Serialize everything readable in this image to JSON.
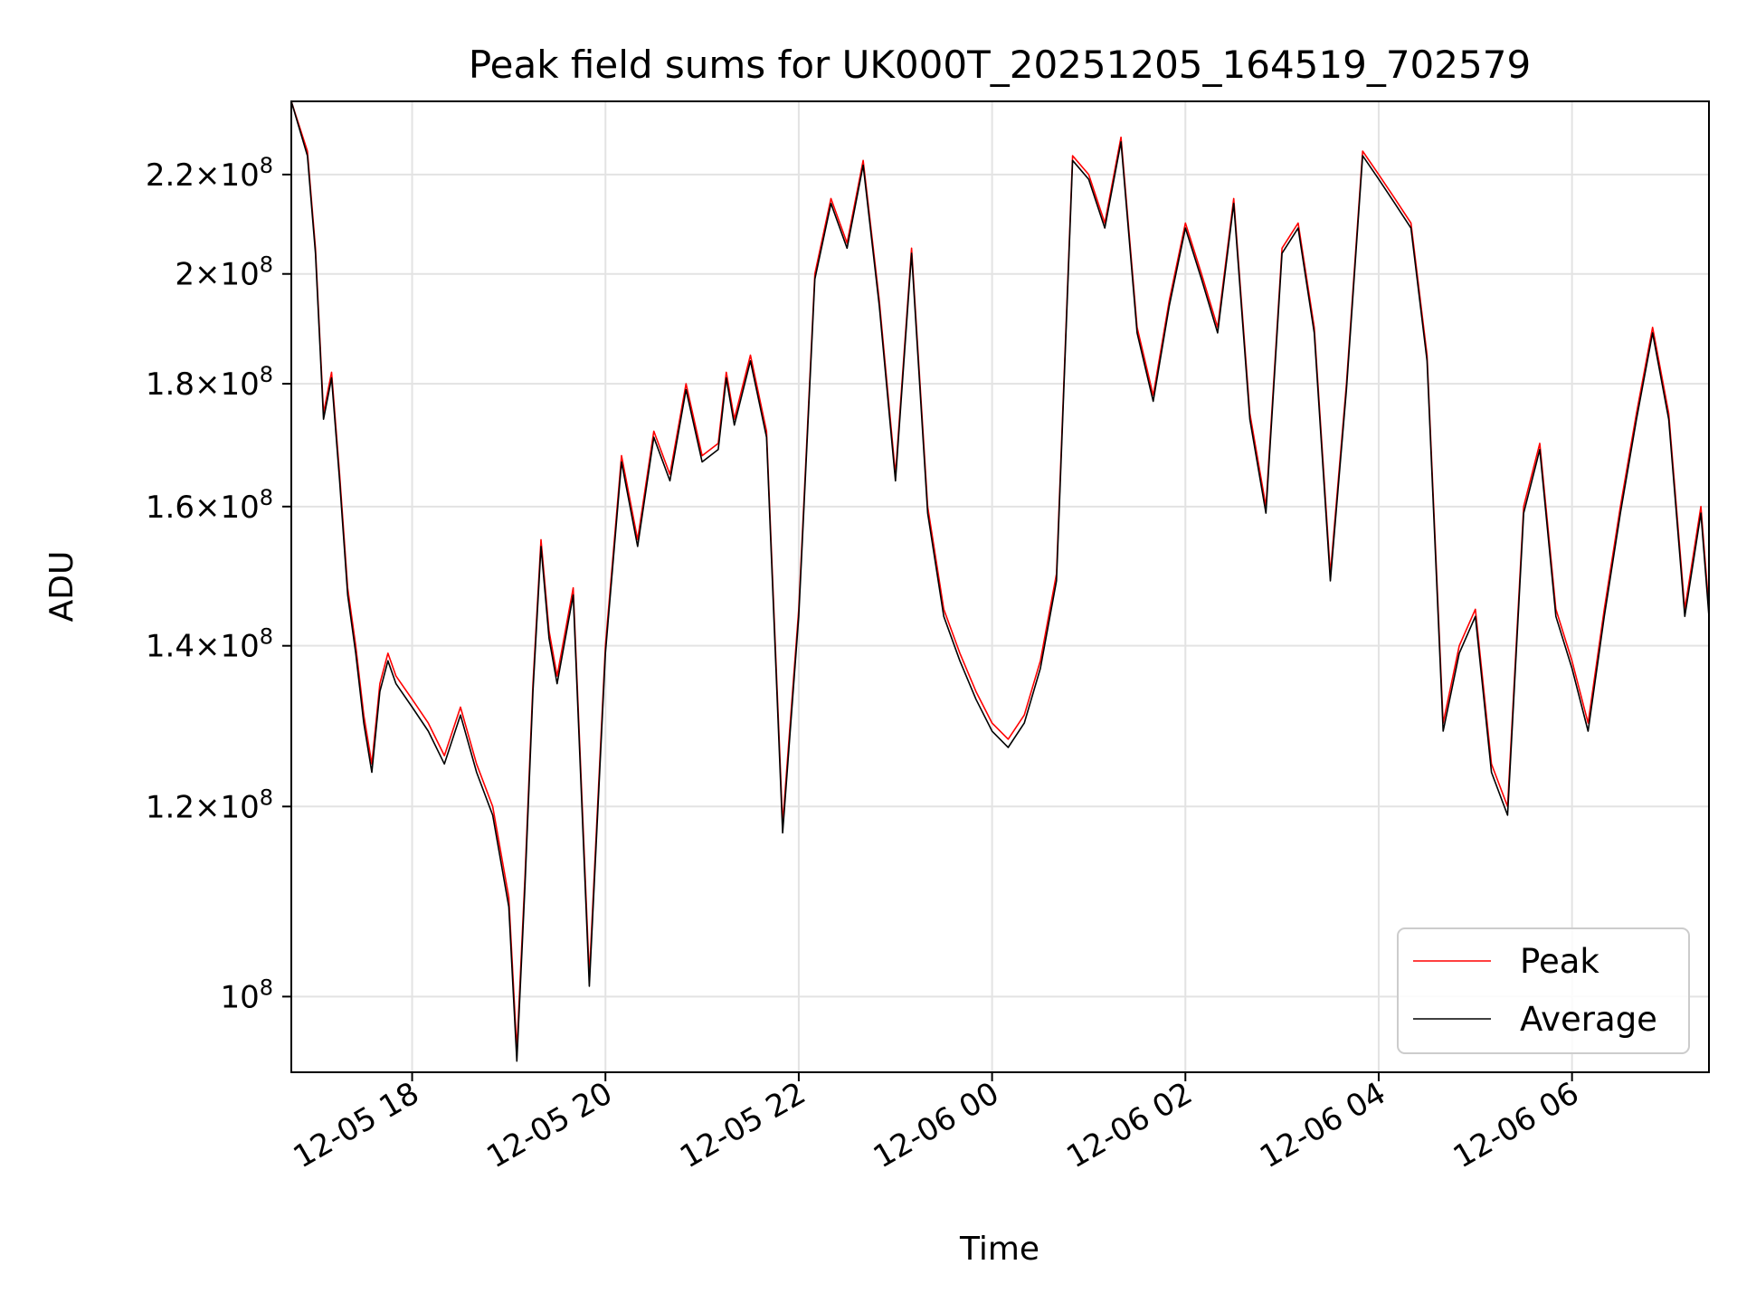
{
  "chart_data": {
    "type": "line",
    "title": "Peak field sums for UK000T_20251205_164519_702579",
    "xlabel": "Time",
    "ylabel": "ADU",
    "y_scale": "log",
    "ylim": [
      93000000,
      236000000
    ],
    "xlim": [
      "2025-12-05 16:45",
      "2025-12-06 07:25"
    ],
    "grid": true,
    "legend_position": "lower-right",
    "y_ticks": [
      {
        "value": 100000000,
        "label": "10^8"
      },
      {
        "value": 120000000,
        "label": "1.2×10^8"
      },
      {
        "value": 140000000,
        "label": "1.4×10^8"
      },
      {
        "value": 160000000,
        "label": "1.6×10^8"
      },
      {
        "value": 180000000,
        "label": "1.8×10^8"
      },
      {
        "value": 200000000,
        "label": "2×10^8"
      },
      {
        "value": 220000000,
        "label": "2.2×10^8"
      }
    ],
    "x_ticks": [
      {
        "value": "2025-12-05 18:00",
        "label": "12-05 18"
      },
      {
        "value": "2025-12-05 20:00",
        "label": "12-05 20"
      },
      {
        "value": "2025-12-05 22:00",
        "label": "12-05 22"
      },
      {
        "value": "2025-12-06 00:00",
        "label": "12-06 00"
      },
      {
        "value": "2025-12-06 02:00",
        "label": "12-06 02"
      },
      {
        "value": "2025-12-06 04:00",
        "label": "12-06 04"
      },
      {
        "value": "2025-12-06 06:00",
        "label": "12-06 06"
      }
    ],
    "x": [
      "2025-12-05 16:45",
      "2025-12-05 16:55",
      "2025-12-05 17:00",
      "2025-12-05 17:05",
      "2025-12-05 17:10",
      "2025-12-05 17:15",
      "2025-12-05 17:20",
      "2025-12-05 17:25",
      "2025-12-05 17:30",
      "2025-12-05 17:35",
      "2025-12-05 17:40",
      "2025-12-05 17:45",
      "2025-12-05 17:50",
      "2025-12-05 18:00",
      "2025-12-05 18:10",
      "2025-12-05 18:20",
      "2025-12-05 18:30",
      "2025-12-05 18:40",
      "2025-12-05 18:50",
      "2025-12-05 19:00",
      "2025-12-05 19:05",
      "2025-12-05 19:10",
      "2025-12-05 19:15",
      "2025-12-05 19:20",
      "2025-12-05 19:25",
      "2025-12-05 19:30",
      "2025-12-05 19:40",
      "2025-12-05 19:50",
      "2025-12-05 20:00",
      "2025-12-05 20:10",
      "2025-12-05 20:20",
      "2025-12-05 20:30",
      "2025-12-05 20:40",
      "2025-12-05 20:50",
      "2025-12-05 21:00",
      "2025-12-05 21:10",
      "2025-12-05 21:15",
      "2025-12-05 21:20",
      "2025-12-05 21:30",
      "2025-12-05 21:40",
      "2025-12-05 21:50",
      "2025-12-05 22:00",
      "2025-12-05 22:10",
      "2025-12-05 22:20",
      "2025-12-05 22:30",
      "2025-12-05 22:40",
      "2025-12-05 22:50",
      "2025-12-05 23:00",
      "2025-12-05 23:10",
      "2025-12-05 23:20",
      "2025-12-05 23:30",
      "2025-12-05 23:40",
      "2025-12-05 23:50",
      "2025-12-06 00:00",
      "2025-12-06 00:10",
      "2025-12-06 00:20",
      "2025-12-06 00:30",
      "2025-12-06 00:40",
      "2025-12-06 00:50",
      "2025-12-06 01:00",
      "2025-12-06 01:10",
      "2025-12-06 01:20",
      "2025-12-06 01:30",
      "2025-12-06 01:40",
      "2025-12-06 01:50",
      "2025-12-06 02:00",
      "2025-12-06 02:10",
      "2025-12-06 02:20",
      "2025-12-06 02:30",
      "2025-12-06 02:40",
      "2025-12-06 02:50",
      "2025-12-06 03:00",
      "2025-12-06 03:10",
      "2025-12-06 03:20",
      "2025-12-06 03:30",
      "2025-12-06 03:40",
      "2025-12-06 03:50",
      "2025-12-06 04:00",
      "2025-12-06 04:10",
      "2025-12-06 04:20",
      "2025-12-06 04:30",
      "2025-12-06 04:40",
      "2025-12-06 04:50",
      "2025-12-06 05:00",
      "2025-12-06 05:10",
      "2025-12-06 05:20",
      "2025-12-06 05:30",
      "2025-12-06 05:40",
      "2025-12-06 05:50",
      "2025-12-06 06:00",
      "2025-12-06 06:10",
      "2025-12-06 06:20",
      "2025-12-06 06:30",
      "2025-12-06 06:40",
      "2025-12-06 06:50",
      "2025-12-06 07:00",
      "2025-12-06 07:10",
      "2025-12-06 07:20",
      "2025-12-06 07:25"
    ],
    "series": [
      {
        "name": "Peak",
        "color": "#ff0000",
        "values": [
          236000000,
          225000000,
          205000000,
          175000000,
          182000000,
          165000000,
          148000000,
          140000000,
          131000000,
          125000000,
          135000000,
          139000000,
          136000000,
          133000000,
          130000000,
          126000000,
          132000000,
          125000000,
          120000000,
          110000000,
          95000000,
          112000000,
          135000000,
          155000000,
          142000000,
          136000000,
          148000000,
          102000000,
          140000000,
          168000000,
          155000000,
          172000000,
          165000000,
          180000000,
          168000000,
          170000000,
          182000000,
          174000000,
          185000000,
          172000000,
          118000000,
          145000000,
          200000000,
          215000000,
          206000000,
          223000000,
          195000000,
          165000000,
          205000000,
          160000000,
          145000000,
          139000000,
          134000000,
          130000000,
          128000000,
          131000000,
          138000000,
          150000000,
          224000000,
          220000000,
          210000000,
          228000000,
          190000000,
          178000000,
          195000000,
          210000000,
          200000000,
          190000000,
          215000000,
          175000000,
          160000000,
          205000000,
          210000000,
          190000000,
          150000000,
          180000000,
          225000000,
          220000000,
          215000000,
          210000000,
          185000000,
          130000000,
          140000000,
          145000000,
          125000000,
          120000000,
          160000000,
          170000000,
          145000000,
          138000000,
          130000000,
          145000000,
          160000000,
          175000000,
          190000000,
          175000000,
          145000000,
          160000000,
          145000000
        ]
      },
      {
        "name": "Average",
        "color": "#000000",
        "values": [
          236000000,
          224000000,
          204000000,
          174000000,
          181000000,
          164000000,
          147000000,
          139000000,
          130000000,
          124000000,
          134000000,
          138000000,
          135000000,
          132000000,
          129000000,
          125000000,
          131000000,
          124000000,
          119000000,
          109000000,
          94000000,
          111000000,
          134000000,
          154000000,
          141000000,
          135000000,
          147000000,
          101000000,
          139000000,
          167000000,
          154000000,
          171000000,
          164000000,
          179000000,
          167000000,
          169000000,
          181000000,
          173000000,
          184000000,
          171000000,
          117000000,
          144000000,
          199000000,
          214000000,
          205000000,
          222000000,
          194000000,
          164000000,
          204000000,
          159000000,
          144000000,
          138000000,
          133000000,
          129000000,
          127000000,
          130000000,
          137000000,
          149000000,
          223000000,
          219000000,
          209000000,
          227000000,
          189000000,
          177000000,
          194000000,
          209000000,
          199000000,
          189000000,
          214000000,
          174000000,
          159000000,
          204000000,
          209000000,
          189000000,
          149000000,
          179000000,
          224000000,
          219000000,
          214000000,
          209000000,
          184000000,
          129000000,
          139000000,
          144000000,
          124000000,
          119000000,
          159000000,
          169000000,
          144000000,
          137000000,
          129000000,
          144000000,
          159000000,
          174000000,
          189000000,
          174000000,
          144000000,
          159000000,
          144000000
        ]
      }
    ]
  }
}
